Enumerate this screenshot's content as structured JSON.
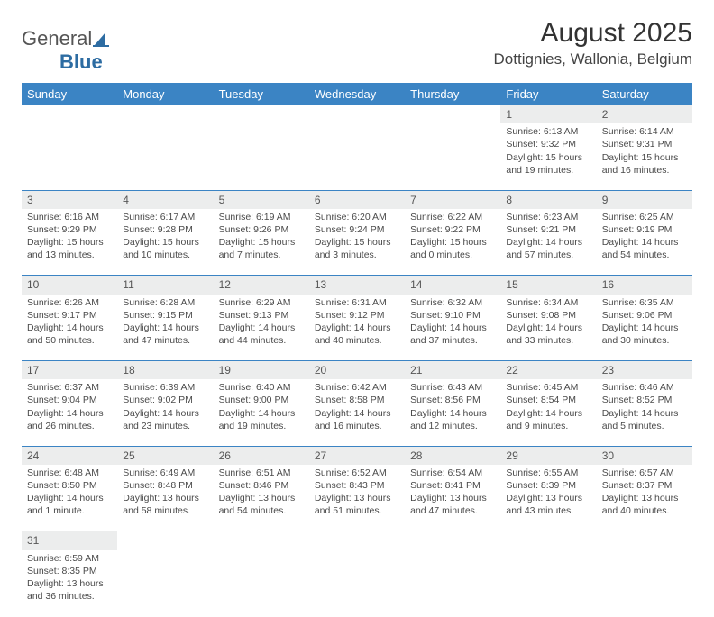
{
  "logo": {
    "text1": "General",
    "text2": "Blue"
  },
  "title": "August 2025",
  "subtitle": "Dottignies, Wallonia, Belgium",
  "colors": {
    "header_bg": "#3b84c4",
    "header_text": "#ffffff",
    "daynum_bg": "#eceded",
    "rule": "#3b84c4",
    "body_text": "#4a4a4a"
  },
  "weekdays": [
    "Sunday",
    "Monday",
    "Tuesday",
    "Wednesday",
    "Thursday",
    "Friday",
    "Saturday"
  ],
  "weeks": [
    [
      null,
      null,
      null,
      null,
      null,
      {
        "n": "1",
        "sunrise": "6:13 AM",
        "sunset": "9:32 PM",
        "daylight": "15 hours and 19 minutes."
      },
      {
        "n": "2",
        "sunrise": "6:14 AM",
        "sunset": "9:31 PM",
        "daylight": "15 hours and 16 minutes."
      }
    ],
    [
      {
        "n": "3",
        "sunrise": "6:16 AM",
        "sunset": "9:29 PM",
        "daylight": "15 hours and 13 minutes."
      },
      {
        "n": "4",
        "sunrise": "6:17 AM",
        "sunset": "9:28 PM",
        "daylight": "15 hours and 10 minutes."
      },
      {
        "n": "5",
        "sunrise": "6:19 AM",
        "sunset": "9:26 PM",
        "daylight": "15 hours and 7 minutes."
      },
      {
        "n": "6",
        "sunrise": "6:20 AM",
        "sunset": "9:24 PM",
        "daylight": "15 hours and 3 minutes."
      },
      {
        "n": "7",
        "sunrise": "6:22 AM",
        "sunset": "9:22 PM",
        "daylight": "15 hours and 0 minutes."
      },
      {
        "n": "8",
        "sunrise": "6:23 AM",
        "sunset": "9:21 PM",
        "daylight": "14 hours and 57 minutes."
      },
      {
        "n": "9",
        "sunrise": "6:25 AM",
        "sunset": "9:19 PM",
        "daylight": "14 hours and 54 minutes."
      }
    ],
    [
      {
        "n": "10",
        "sunrise": "6:26 AM",
        "sunset": "9:17 PM",
        "daylight": "14 hours and 50 minutes."
      },
      {
        "n": "11",
        "sunrise": "6:28 AM",
        "sunset": "9:15 PM",
        "daylight": "14 hours and 47 minutes."
      },
      {
        "n": "12",
        "sunrise": "6:29 AM",
        "sunset": "9:13 PM",
        "daylight": "14 hours and 44 minutes."
      },
      {
        "n": "13",
        "sunrise": "6:31 AM",
        "sunset": "9:12 PM",
        "daylight": "14 hours and 40 minutes."
      },
      {
        "n": "14",
        "sunrise": "6:32 AM",
        "sunset": "9:10 PM",
        "daylight": "14 hours and 37 minutes."
      },
      {
        "n": "15",
        "sunrise": "6:34 AM",
        "sunset": "9:08 PM",
        "daylight": "14 hours and 33 minutes."
      },
      {
        "n": "16",
        "sunrise": "6:35 AM",
        "sunset": "9:06 PM",
        "daylight": "14 hours and 30 minutes."
      }
    ],
    [
      {
        "n": "17",
        "sunrise": "6:37 AM",
        "sunset": "9:04 PM",
        "daylight": "14 hours and 26 minutes."
      },
      {
        "n": "18",
        "sunrise": "6:39 AM",
        "sunset": "9:02 PM",
        "daylight": "14 hours and 23 minutes."
      },
      {
        "n": "19",
        "sunrise": "6:40 AM",
        "sunset": "9:00 PM",
        "daylight": "14 hours and 19 minutes."
      },
      {
        "n": "20",
        "sunrise": "6:42 AM",
        "sunset": "8:58 PM",
        "daylight": "14 hours and 16 minutes."
      },
      {
        "n": "21",
        "sunrise": "6:43 AM",
        "sunset": "8:56 PM",
        "daylight": "14 hours and 12 minutes."
      },
      {
        "n": "22",
        "sunrise": "6:45 AM",
        "sunset": "8:54 PM",
        "daylight": "14 hours and 9 minutes."
      },
      {
        "n": "23",
        "sunrise": "6:46 AM",
        "sunset": "8:52 PM",
        "daylight": "14 hours and 5 minutes."
      }
    ],
    [
      {
        "n": "24",
        "sunrise": "6:48 AM",
        "sunset": "8:50 PM",
        "daylight": "14 hours and 1 minute."
      },
      {
        "n": "25",
        "sunrise": "6:49 AM",
        "sunset": "8:48 PM",
        "daylight": "13 hours and 58 minutes."
      },
      {
        "n": "26",
        "sunrise": "6:51 AM",
        "sunset": "8:46 PM",
        "daylight": "13 hours and 54 minutes."
      },
      {
        "n": "27",
        "sunrise": "6:52 AM",
        "sunset": "8:43 PM",
        "daylight": "13 hours and 51 minutes."
      },
      {
        "n": "28",
        "sunrise": "6:54 AM",
        "sunset": "8:41 PM",
        "daylight": "13 hours and 47 minutes."
      },
      {
        "n": "29",
        "sunrise": "6:55 AM",
        "sunset": "8:39 PM",
        "daylight": "13 hours and 43 minutes."
      },
      {
        "n": "30",
        "sunrise": "6:57 AM",
        "sunset": "8:37 PM",
        "daylight": "13 hours and 40 minutes."
      }
    ],
    [
      {
        "n": "31",
        "sunrise": "6:59 AM",
        "sunset": "8:35 PM",
        "daylight": "13 hours and 36 minutes."
      },
      null,
      null,
      null,
      null,
      null,
      null
    ]
  ],
  "labels": {
    "sunrise": "Sunrise: ",
    "sunset": "Sunset: ",
    "daylight": "Daylight: "
  }
}
